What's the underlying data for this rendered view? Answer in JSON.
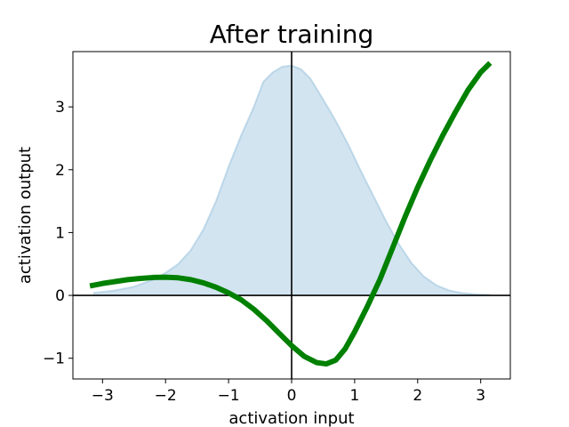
{
  "chart_data": {
    "type": "line",
    "title": "After training",
    "xlabel": "activation input",
    "ylabel": "activation output",
    "xlim": [
      -3.47,
      3.47
    ],
    "ylim": [
      -1.33,
      3.88
    ],
    "xticks": [
      -3,
      -2,
      -1,
      0,
      1,
      2,
      3
    ],
    "xtick_labels": [
      "−3",
      "−2",
      "−1",
      "0",
      "1",
      "2",
      "3"
    ],
    "yticks": [
      -1,
      0,
      1,
      2,
      3
    ],
    "ytick_labels": [
      "−1",
      "0",
      "1",
      "2",
      "3"
    ],
    "reference_lines": {
      "x": 0,
      "y": 0
    },
    "grid": false,
    "series": [
      {
        "kind": "filled_area",
        "color": "#1f77b4",
        "x": [
          -3.15,
          -2.8,
          -2.5,
          -2.2,
          -2.0,
          -1.8,
          -1.6,
          -1.4,
          -1.2,
          -1.0,
          -0.8,
          -0.6,
          -0.45,
          -0.3,
          -0.15,
          0.0,
          0.15,
          0.3,
          0.5,
          0.7,
          0.9,
          1.1,
          1.3,
          1.5,
          1.7,
          1.9,
          2.1,
          2.3,
          2.5,
          2.7,
          2.9,
          3.15
        ],
        "values": [
          0.04,
          0.08,
          0.14,
          0.25,
          0.36,
          0.5,
          0.72,
          1.05,
          1.5,
          2.05,
          2.55,
          3.0,
          3.4,
          3.55,
          3.64,
          3.66,
          3.6,
          3.45,
          3.12,
          2.78,
          2.4,
          1.98,
          1.58,
          1.18,
          0.82,
          0.52,
          0.3,
          0.16,
          0.08,
          0.04,
          0.02,
          0.01
        ]
      },
      {
        "kind": "line",
        "color": "#008000",
        "x": [
          -3.2,
          -3.0,
          -2.8,
          -2.6,
          -2.4,
          -2.2,
          -2.0,
          -1.8,
          -1.6,
          -1.4,
          -1.2,
          -1.0,
          -0.8,
          -0.6,
          -0.4,
          -0.2,
          0.0,
          0.2,
          0.4,
          0.55,
          0.7,
          0.85,
          1.0,
          1.2,
          1.4,
          1.6,
          1.8,
          2.0,
          2.2,
          2.4,
          2.6,
          2.8,
          3.0,
          3.15
        ],
        "values": [
          0.15,
          0.19,
          0.22,
          0.25,
          0.27,
          0.285,
          0.29,
          0.28,
          0.25,
          0.2,
          0.13,
          0.04,
          -0.07,
          -0.22,
          -0.4,
          -0.6,
          -0.8,
          -0.97,
          -1.07,
          -1.09,
          -1.03,
          -0.85,
          -0.58,
          -0.18,
          0.25,
          0.75,
          1.25,
          1.72,
          2.15,
          2.55,
          2.92,
          3.27,
          3.55,
          3.7
        ]
      }
    ]
  }
}
